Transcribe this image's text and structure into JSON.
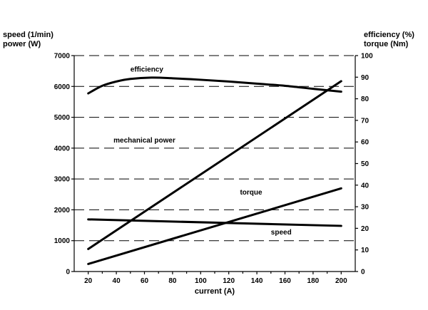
{
  "chart_data": {
    "type": "line",
    "x": {
      "label": "current (A)",
      "ticks": [
        20,
        40,
        60,
        80,
        100,
        120,
        140,
        160,
        180,
        200
      ],
      "lim": [
        10,
        210
      ]
    },
    "y_left": {
      "label_lines": [
        "speed (1/min)",
        "power (W)"
      ],
      "ticks": [
        0,
        1000,
        2000,
        3000,
        4000,
        5000,
        6000,
        7000
      ],
      "lim": [
        0,
        7000
      ]
    },
    "y_right": {
      "label_lines": [
        "efficiency (%)",
        "torque (Nm)"
      ],
      "ticks": [
        0,
        10,
        20,
        30,
        40,
        50,
        60,
        70,
        80,
        90,
        100
      ],
      "lim": [
        0,
        100
      ]
    },
    "grid": "horizontal dashed",
    "series": [
      {
        "name": "efficiency",
        "axis": "right",
        "x": [
          20,
          30,
          40,
          50,
          65,
          80,
          100,
          120,
          140,
          160,
          180,
          200
        ],
        "y": [
          82.5,
          86.0,
          88.0,
          89.2,
          89.8,
          89.5,
          88.8,
          88.0,
          87.0,
          86.0,
          84.6,
          83.3
        ]
      },
      {
        "name": "mechanical power",
        "axis": "left",
        "x": [
          20,
          200
        ],
        "y": [
          730,
          6170
        ]
      },
      {
        "name": "torque",
        "axis": "right",
        "x": [
          20,
          200
        ],
        "y": [
          3.5,
          38.5
        ]
      },
      {
        "name": "speed",
        "axis": "left",
        "x": [
          20,
          200
        ],
        "y": [
          1690,
          1480
        ]
      }
    ],
    "annotations": [
      {
        "text": "efficiency",
        "x": 50,
        "y_left": 6480
      },
      {
        "text": "mechanical power",
        "x": 38,
        "y_left": 4180
      },
      {
        "text": "torque",
        "x": 128,
        "y_left": 2500
      },
      {
        "text": "speed",
        "x": 150,
        "y_left": 1200
      }
    ]
  }
}
